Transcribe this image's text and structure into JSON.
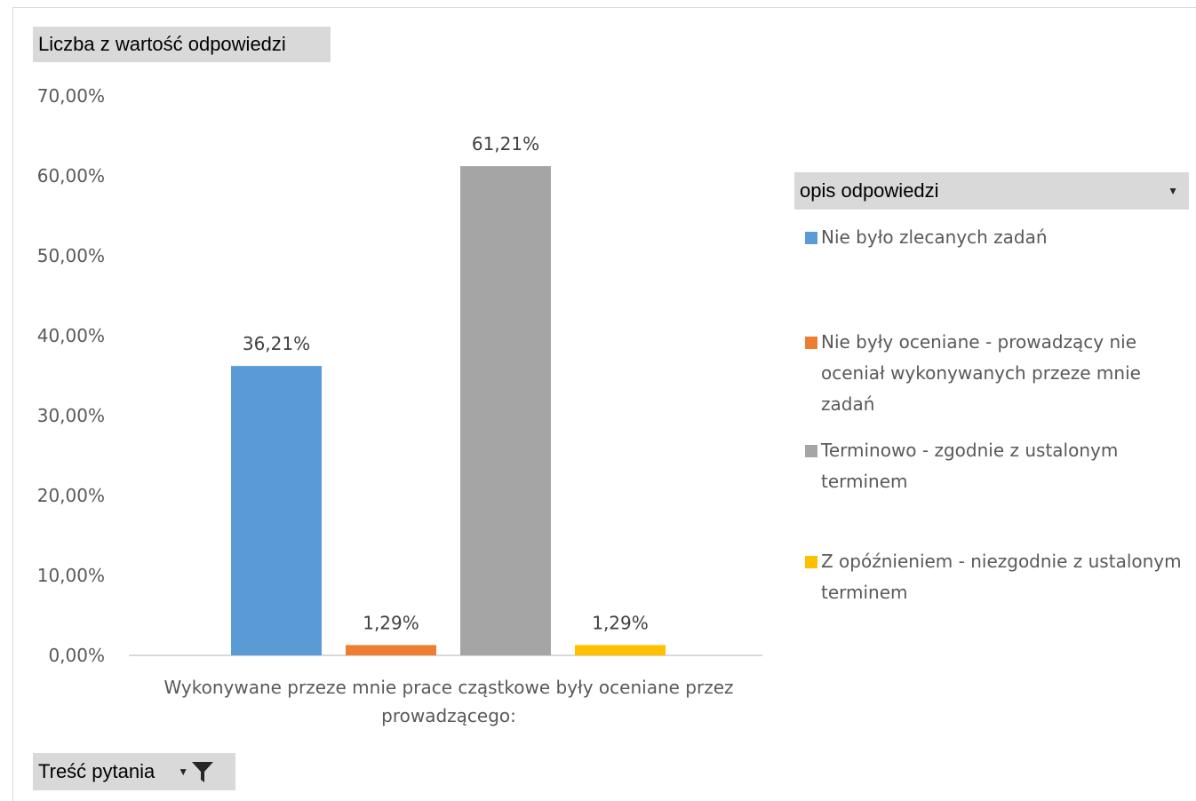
{
  "pivot": {
    "values_field": "Liczba z wartość odpowiedzi",
    "legend_field": "opis odpowiedzi",
    "axis_field": "Treść pytania"
  },
  "chart_data": {
    "type": "bar",
    "categories": [
      "Wykonywane przeze mnie prace cząstkowe były oceniane przez prowadzącego:"
    ],
    "series": [
      {
        "name": "Nie było zlecanych zadań",
        "values": [
          36.21
        ],
        "label": "36,21%",
        "color": "#5b9bd5"
      },
      {
        "name": "Nie były oceniane - prowadzący nie oceniał wykonywanych przeze mnie zadań",
        "values": [
          1.29
        ],
        "label": "1,29%",
        "color": "#ed7d31"
      },
      {
        "name": "Terminowo - zgodnie z ustalonym terminem",
        "values": [
          61.21
        ],
        "label": "61,21%",
        "color": "#a5a5a5"
      },
      {
        "name": "Z opóźnieniem - niezgodnie z ustalonym terminem",
        "values": [
          1.29
        ],
        "label": "1,29%",
        "color": "#ffc000"
      }
    ],
    "ylim": [
      0,
      70
    ],
    "yticks": [
      "0,00%",
      "10,00%",
      "20,00%",
      "30,00%",
      "40,00%",
      "50,00%",
      "60,00%",
      "70,00%"
    ],
    "legend_position": "right",
    "grid": false
  }
}
